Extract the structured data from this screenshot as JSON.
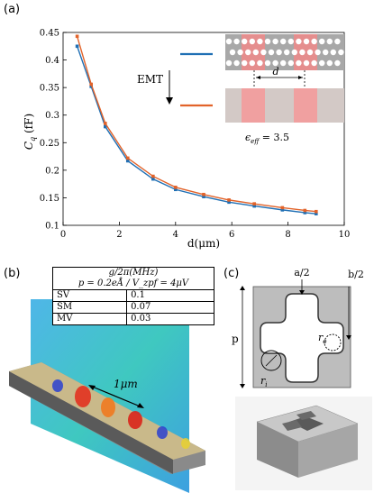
{
  "panel_a": {
    "label": "(a)",
    "emt_label": "EMT",
    "d_label": "d",
    "eps_label": "ε_eff = 3.5",
    "blue": "#1f6fb4",
    "orange": "#e2632a"
  },
  "chart_data": {
    "type": "line",
    "xlabel": "d(μm)",
    "ylabel": "C_q (fF)",
    "xlim": [
      0,
      10
    ],
    "ylim": [
      0.1,
      0.45
    ],
    "xticks": [
      "0",
      "2",
      "4",
      "6",
      "8",
      "10"
    ],
    "yticks": [
      "0.1",
      "0.15",
      "0.2",
      "0.25",
      "0.3",
      "0.35",
      "0.4",
      "0.45"
    ],
    "grid": false,
    "x": [
      0.5,
      1.0,
      1.5,
      2.3,
      3.2,
      4.0,
      5.0,
      5.9,
      6.8,
      7.8,
      8.6,
      9.0
    ],
    "series": [
      {
        "color": "#1f6fb4",
        "values": [
          0.425,
          0.352,
          0.279,
          0.217,
          0.184,
          0.165,
          0.152,
          0.142,
          0.135,
          0.128,
          0.123,
          0.121
        ]
      },
      {
        "color": "#e2632a",
        "values": [
          0.443,
          0.356,
          0.285,
          0.222,
          0.189,
          0.169,
          0.156,
          0.146,
          0.139,
          0.132,
          0.127,
          0.125
        ]
      }
    ]
  },
  "panel_b": {
    "label": "(b)",
    "scale_label": "1μm",
    "table": {
      "header1": "g/2π(MHz)",
      "header2": "p = 0.2eÅ / V_zpf = 4μV",
      "rows": [
        {
          "name": "SV",
          "value": "0.1"
        },
        {
          "name": "SM",
          "value": "0.07"
        },
        {
          "name": "MV",
          "value": "0.03"
        }
      ]
    }
  },
  "panel_c": {
    "label": "(c)",
    "a_half": "a/2",
    "b_half": "b/2",
    "p": "p",
    "ro": "r_o",
    "ri": "r_i"
  }
}
